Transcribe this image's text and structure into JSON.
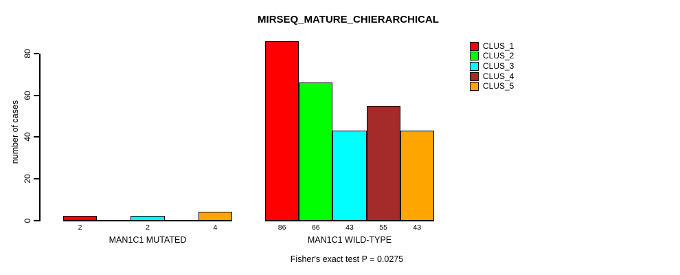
{
  "chart_data": {
    "type": "bar",
    "title": "MIRSEQ_MATURE_CHIERARCHICAL",
    "ylabel": "number of cases",
    "xlabel": "",
    "yticks": [
      0,
      20,
      40,
      60,
      80
    ],
    "ylim": [
      0,
      88
    ],
    "grid": false,
    "legend_position": "right",
    "categories": [
      "MAN1C1 MUTATED",
      "MAN1C1 WILD-TYPE"
    ],
    "series": [
      {
        "name": "CLUS_1",
        "color": "#FF0000",
        "values": [
          2,
          86
        ]
      },
      {
        "name": "CLUS_2",
        "color": "#00FF00",
        "values": [
          0,
          66
        ]
      },
      {
        "name": "CLUS_3",
        "color": "#00FFFF",
        "values": [
          2,
          43
        ]
      },
      {
        "name": "CLUS_4",
        "color": "#A52A2A",
        "values": [
          0,
          55
        ]
      },
      {
        "name": "CLUS_5",
        "color": "#FFA500",
        "values": [
          4,
          43
        ]
      }
    ],
    "bar_value_labels": [
      [
        "2",
        "",
        "2",
        "",
        "4"
      ],
      [
        "86",
        "66",
        "43",
        "55",
        "43"
      ]
    ],
    "footnote": "Fisher's exact test P = 0.0275"
  }
}
